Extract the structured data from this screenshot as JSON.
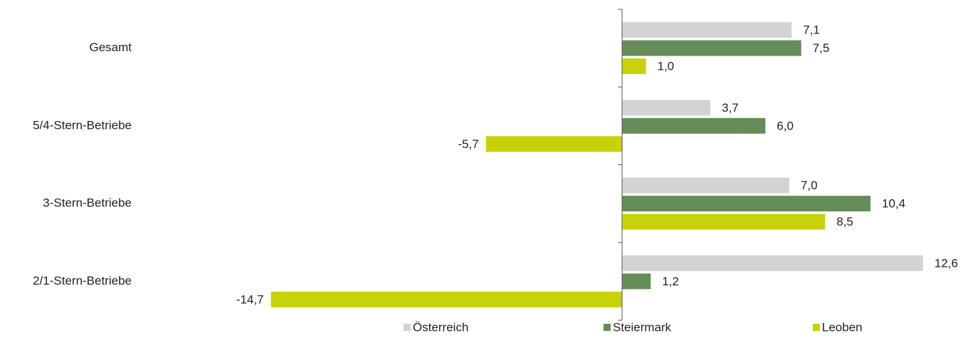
{
  "chart_data": {
    "type": "hbar",
    "categories": [
      "Gesamt",
      "5/4-Stern-Betriebe",
      "3-Stern-Betriebe",
      "2/1-Stern-Betriebe"
    ],
    "series": [
      {
        "name": "Österreich",
        "color": "#d3d3d3",
        "values": [
          7.1,
          3.7,
          7.0,
          12.6
        ],
        "value_labels": [
          "7,1",
          "3,7",
          "7,0",
          "12,6"
        ]
      },
      {
        "name": "Steiermark",
        "color": "#668c5a",
        "values": [
          7.5,
          6.0,
          10.4,
          1.2
        ],
        "value_labels": [
          "7,5",
          "6,0",
          "10,4",
          "1,2"
        ]
      },
      {
        "name": "Leoben",
        "color": "#c8d20a",
        "values": [
          1.0,
          -5.7,
          8.5,
          -14.7
        ],
        "value_labels": [
          "1,0",
          "-5,7",
          "8,5",
          "-14,7"
        ]
      }
    ],
    "xlim": [
      -16,
      14
    ]
  }
}
